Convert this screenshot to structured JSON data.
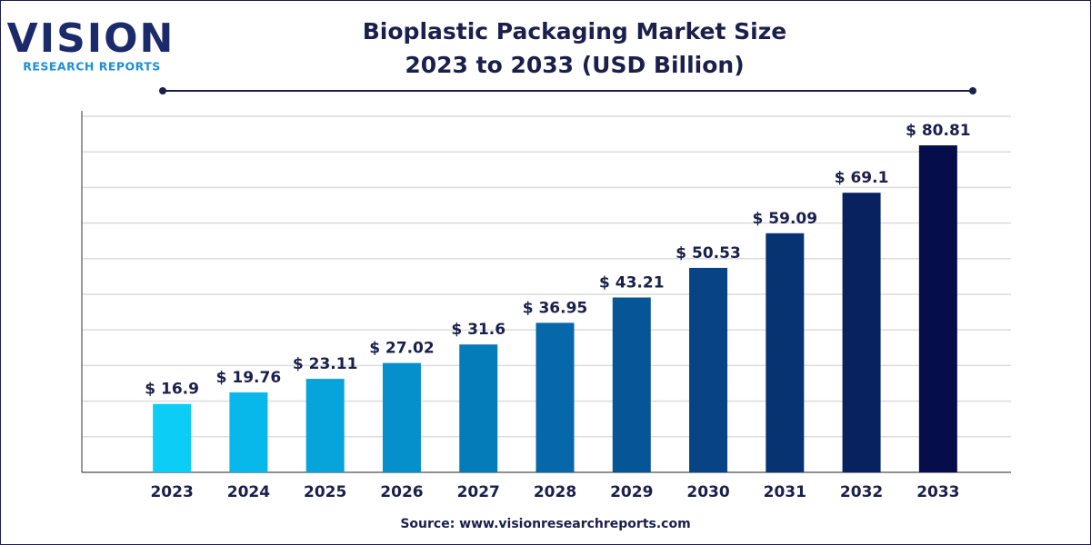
{
  "logo": {
    "name": "VISION",
    "tagline": "RESEARCH REPORTS"
  },
  "chart_data": {
    "type": "bar",
    "title": "Bioplastic Packaging Market Size",
    "subtitle": "2023 to 2033 (USD Billion)",
    "source": "Source: www.visionresearchreports.com",
    "categories": [
      "2023",
      "2024",
      "2025",
      "2026",
      "2027",
      "2028",
      "2029",
      "2030",
      "2031",
      "2032",
      "2033"
    ],
    "values": [
      16.9,
      19.76,
      23.11,
      27.02,
      31.6,
      36.95,
      43.21,
      50.53,
      59.09,
      69.1,
      80.81
    ],
    "value_labels": [
      "$ 16.9",
      "$ 19.76",
      "$ 23.11",
      "$ 27.02",
      "$ 31.6",
      "$ 36.95",
      "$ 43.21",
      "$ 50.53",
      "$ 59.09",
      "$ 69.1",
      "$ 80.81"
    ],
    "colors": [
      "#0ccdf5",
      "#08b8ea",
      "#06a4da",
      "#0590cb",
      "#047cba",
      "#0668a8",
      "#065596",
      "#074385",
      "#083372",
      "#07225e",
      "#050e4a"
    ],
    "ylim": [
      0,
      88
    ],
    "yticks": [
      0,
      8.8,
      17.6,
      26.4,
      35.2,
      44,
      52.8,
      61.6,
      70.4,
      79.2,
      88
    ],
    "grid": true
  }
}
